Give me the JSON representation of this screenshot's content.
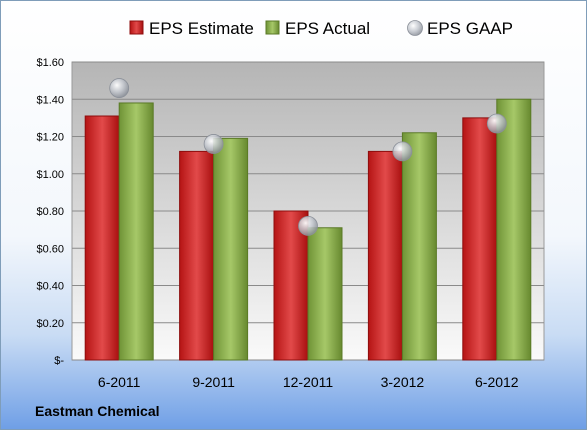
{
  "chart_data": {
    "type": "bar",
    "categories": [
      "6-2011",
      "9-2011",
      "12-2011",
      "3-2012",
      "6-2012"
    ],
    "series": [
      {
        "name": "EPS Estimate",
        "kind": "bar",
        "color": "#cc1f1f",
        "values": [
          1.31,
          1.12,
          0.8,
          1.12,
          1.3
        ]
      },
      {
        "name": "EPS Actual",
        "kind": "bar",
        "color": "#8cb04a",
        "values": [
          1.38,
          1.19,
          0.71,
          1.22,
          1.4
        ]
      },
      {
        "name": "EPS GAAP",
        "kind": "point",
        "color": "#b8bcc4",
        "values": [
          1.46,
          1.16,
          0.72,
          1.12,
          1.27
        ]
      }
    ],
    "y_ticks": [
      "$-",
      "$0.20",
      "$0.40",
      "$0.60",
      "$0.80",
      "$1.00",
      "$1.20",
      "$1.40",
      "$1.60"
    ],
    "ylim": [
      0,
      1.6
    ],
    "ystep": 0.2,
    "grid": true,
    "legend_position": "top"
  },
  "footer": {
    "company": "Eastman Chemical"
  }
}
